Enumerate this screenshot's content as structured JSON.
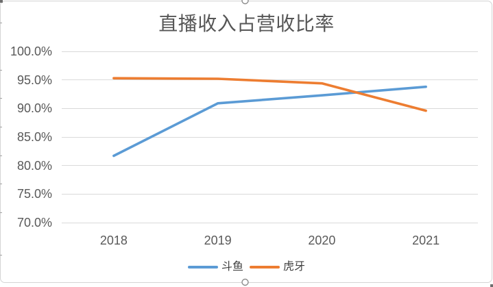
{
  "chart_data": {
    "type": "line",
    "title": "直播收入占营收比率",
    "xlabel": "",
    "ylabel": "",
    "categories": [
      "2018",
      "2019",
      "2020",
      "2021"
    ],
    "series": [
      {
        "name": "斗鱼",
        "color": "#5B9BD5",
        "values": [
          81.7,
          90.9,
          92.3,
          93.8
        ]
      },
      {
        "name": "虎牙",
        "color": "#ED7D31",
        "values": [
          95.3,
          95.2,
          94.4,
          89.6
        ]
      }
    ],
    "ylim": [
      70,
      100
    ],
    "y_ticks": [
      100,
      95,
      90,
      85,
      80,
      75,
      70
    ],
    "y_tick_labels": [
      "100.0%",
      "95.0%",
      "90.0%",
      "85.0%",
      "80.0%",
      "75.0%",
      "70.0%"
    ],
    "grid": true,
    "legend": {
      "position": "bottom",
      "items": [
        "斗鱼",
        "虎牙"
      ]
    }
  },
  "colors": {
    "title_text": "#565656",
    "tick_text": "#595959",
    "gridline": "#d9d9d9",
    "frame_border": "#d4d4d4",
    "background": "#ffffff"
  }
}
